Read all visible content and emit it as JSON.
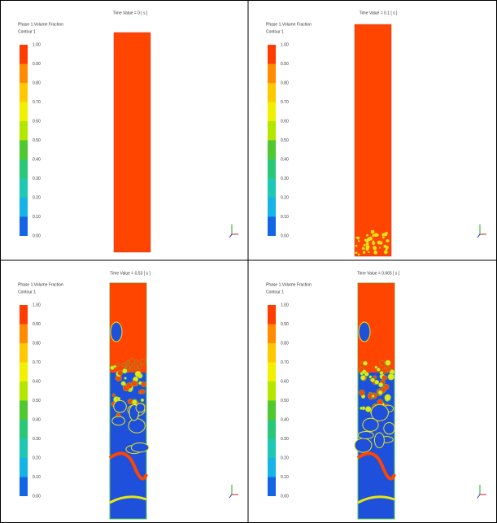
{
  "panels": [
    {
      "time_label": "Time Value = 0 [ s ]",
      "title": "Phase 1.Volume Fraction",
      "contour_label": "Contour 1"
    },
    {
      "time_label": "Time Value = 0.1 [ s ]",
      "title": "Phase 1.Volume Fraction",
      "contour_label": "Contour 1"
    },
    {
      "time_label": "Time Value = 0.53 [ s ]",
      "title": "Phase 1.Volume Fraction",
      "contour_label": "Contour 1"
    },
    {
      "time_label": "Time Value = 0.665 [ s ]",
      "title": "Phase 1.Volume Fraction",
      "contour_label": "Contour 1"
    }
  ],
  "legend_labels": [
    "1.00",
    "0.90",
    "0.80",
    "0.70",
    "0.60",
    "0.50",
    "0.40",
    "0.30",
    "0.20",
    "0.10",
    "0.00"
  ]
}
